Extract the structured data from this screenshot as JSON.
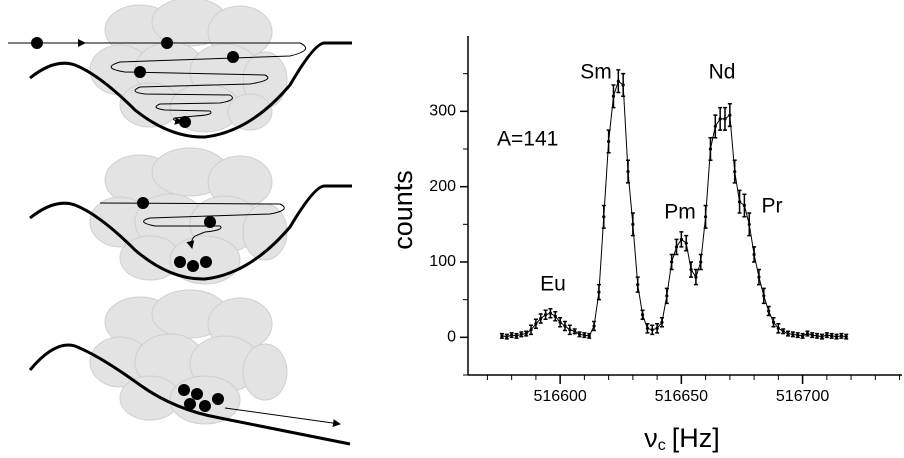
{
  "chart_data": {
    "type": "errorline",
    "ylabel": "counts",
    "xlabel_symbol": "ν",
    "xlabel_subscript": "c",
    "xlabel_unit": "[Hz]",
    "annotations": [
      "Eu",
      "Sm",
      "Pm",
      "Nd",
      "Pr",
      "A=141"
    ],
    "xlim": [
      516562,
      516741
    ],
    "ylim": [
      -50,
      400
    ],
    "xticks": [
      516600,
      516650,
      516700
    ],
    "xminorticks": [
      516570,
      516580,
      516590,
      516610,
      516620,
      516630,
      516640,
      516660,
      516670,
      516680,
      516690,
      516710,
      516720,
      516730,
      516740
    ],
    "yticks": [
      0,
      100,
      200,
      300
    ],
    "yminorticks": [
      -50,
      50,
      150,
      250,
      350
    ],
    "color": "#000000",
    "x": [
      516576,
      516578,
      516580,
      516582,
      516584,
      516586,
      516588,
      516590,
      516592,
      516594,
      516596,
      516598,
      516600,
      516602,
      516604,
      516606,
      516608,
      516610,
      516612,
      516614,
      516616,
      516618,
      516620,
      516622,
      516624,
      516626,
      516628,
      516630,
      516632,
      516634,
      516636,
      516638,
      516640,
      516642,
      516644,
      516646,
      516648,
      516650,
      516652,
      516654,
      516656,
      516658,
      516660,
      516662,
      516664,
      516666,
      516668,
      516670,
      516672,
      516674,
      516676,
      516678,
      516680,
      516682,
      516684,
      516686,
      516688,
      516690,
      516692,
      516694,
      516696,
      516698,
      516700,
      516702,
      516704,
      516706,
      516708,
      516710,
      516712,
      516714,
      516716,
      516718
    ],
    "values": [
      2,
      1,
      3,
      2,
      4,
      5,
      10,
      18,
      25,
      30,
      32,
      28,
      20,
      15,
      10,
      8,
      4,
      3,
      2,
      15,
      60,
      160,
      260,
      320,
      340,
      335,
      220,
      150,
      70,
      30,
      12,
      10,
      12,
      20,
      55,
      100,
      120,
      130,
      125,
      90,
      80,
      100,
      160,
      250,
      280,
      290,
      290,
      295,
      220,
      180,
      175,
      150,
      110,
      80,
      55,
      35,
      20,
      12,
      8,
      5,
      4,
      3,
      2,
      5,
      3,
      2,
      1,
      3,
      2,
      1,
      2,
      1
    ],
    "errors": [
      3,
      3,
      3,
      3,
      3,
      3,
      6,
      6,
      6,
      6,
      6,
      6,
      6,
      6,
      6,
      3,
      3,
      3,
      3,
      6,
      10,
      15,
      15,
      15,
      15,
      15,
      15,
      15,
      10,
      6,
      6,
      6,
      6,
      6,
      10,
      10,
      10,
      10,
      10,
      10,
      10,
      10,
      15,
      15,
      15,
      15,
      15,
      15,
      15,
      15,
      15,
      15,
      10,
      10,
      10,
      6,
      6,
      6,
      3,
      3,
      3,
      3,
      3,
      3,
      3,
      3,
      3,
      3,
      3,
      3,
      3,
      3
    ]
  }
}
